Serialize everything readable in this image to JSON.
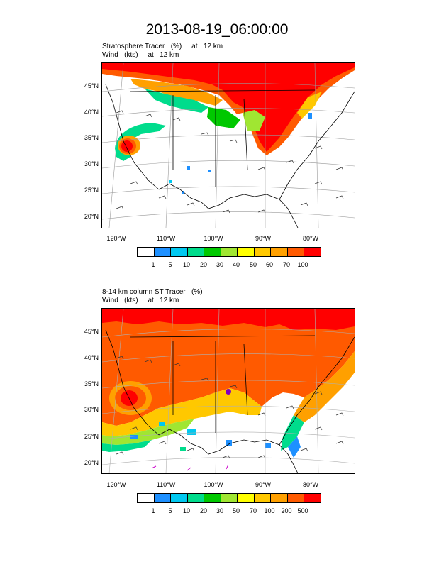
{
  "title": "2013-08-19_06:00:00",
  "panels": [
    {
      "subtitle1": "Stratosphere Tracer   (%)     at   12 km",
      "subtitle2": "Wind   (kts)     at   12 km",
      "lat_labels": [
        "45°N",
        "40°N",
        "35°N",
        "30°N",
        "25°N",
        "20°N"
      ],
      "lon_labels": [
        "120°W",
        "110°W",
        "100°W",
        "90°W",
        "80°W"
      ],
      "colorbar_labels": [
        "1",
        "5",
        "10",
        "20",
        "30",
        "40",
        "50",
        "60",
        "70",
        "100"
      ]
    },
    {
      "subtitle1": "8-14 km column ST Tracer   (%)",
      "subtitle2": "Wind   (kts)     at   12 km",
      "lat_labels": [
        "45°N",
        "40°N",
        "35°N",
        "30°N",
        "25°N",
        "20°N"
      ],
      "lon_labels": [
        "120°W",
        "110°W",
        "100°W",
        "90°W",
        "80°W"
      ],
      "colorbar_labels": [
        "1",
        "5",
        "10",
        "20",
        "30",
        "50",
        "70",
        "100",
        "200",
        "500"
      ]
    }
  ],
  "colorbar_colors": [
    "#ffffff",
    "#1e90ff",
    "#00c8f0",
    "#00dc8c",
    "#00c800",
    "#a0e632",
    "#ffff00",
    "#ffc800",
    "#ffa000",
    "#ff5a00",
    "#ff0000"
  ]
}
